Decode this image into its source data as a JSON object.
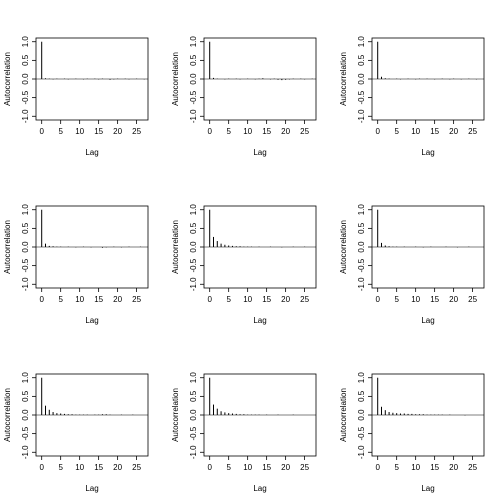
{
  "chart_data": [
    {
      "type": "acf",
      "xlabel": "Lag",
      "ylabel": "Autocorrelation",
      "x": [
        0,
        1,
        2,
        3,
        4,
        5,
        6,
        7,
        8,
        9,
        10,
        11,
        12,
        13,
        14,
        15,
        16,
        17,
        18,
        19,
        20,
        21,
        22,
        23,
        24,
        25,
        26,
        27
      ],
      "values": [
        1,
        0.02,
        0.01,
        -0.01,
        0.01,
        0,
        0.01,
        -0.01,
        0,
        0.01,
        0,
        -0.01,
        0.01,
        0,
        0.01,
        -0.01,
        0.01,
        0,
        -0.02,
        -0.01,
        0.01,
        0,
        0.01,
        -0.01,
        0,
        0.01,
        0,
        -0.01
      ],
      "xlim": [
        -1.5,
        28
      ],
      "ylim": [
        -1.1,
        1.1
      ],
      "xticks": [
        0,
        5,
        10,
        15,
        20,
        25
      ],
      "yticks": [
        {
          "value": -1,
          "label": "-1.0"
        },
        -0.5,
        {
          "value": 0,
          "label": "0.0"
        },
        0.5,
        {
          "value": 1,
          "label": "1.0"
        }
      ],
      "color": "#000000"
    },
    {
      "type": "acf",
      "xlabel": "Lag",
      "ylabel": "Autocorrelation",
      "x": [
        0,
        1,
        2,
        3,
        4,
        5,
        6,
        7,
        8,
        9,
        10,
        11,
        12,
        13,
        14,
        15,
        16,
        17,
        18,
        19,
        20,
        21,
        22,
        23,
        24,
        25,
        26,
        27
      ],
      "values": [
        1,
        0.03,
        0.01,
        0,
        -0.01,
        0.01,
        0,
        0.01,
        -0.01,
        0,
        0.01,
        0,
        -0.01,
        0.01,
        0.02,
        0,
        -0.01,
        0.01,
        -0.02,
        -0.03,
        -0.02,
        -0.01,
        0.01,
        0,
        0.01,
        -0.01,
        0,
        0.01
      ],
      "xlim": [
        -1.5,
        28
      ],
      "ylim": [
        -1.1,
        1.1
      ],
      "xticks": [
        0,
        5,
        10,
        15,
        20,
        25
      ],
      "yticks": [
        {
          "value": -1,
          "label": "-1.0"
        },
        -0.5,
        {
          "value": 0,
          "label": "0.0"
        },
        0.5,
        {
          "value": 1,
          "label": "1.0"
        }
      ],
      "color": "#000000"
    },
    {
      "type": "acf",
      "xlabel": "Lag",
      "ylabel": "Autocorrelation",
      "x": [
        0,
        1,
        2,
        3,
        4,
        5,
        6,
        7,
        8,
        9,
        10,
        11,
        12,
        13,
        14,
        15,
        16,
        17,
        18,
        19,
        20,
        21,
        22,
        23,
        24,
        25,
        26,
        27
      ],
      "values": [
        1,
        0.06,
        0.02,
        0.01,
        0,
        0.01,
        -0.01,
        0,
        0.01,
        0,
        -0.01,
        0.01,
        0,
        0.01,
        0,
        -0.01,
        0,
        0.01,
        0,
        -0.01,
        0.01,
        0,
        -0.01,
        0,
        0.01,
        0,
        -0.01,
        0
      ],
      "xlim": [
        -1.5,
        28
      ],
      "ylim": [
        -1.1,
        1.1
      ],
      "xticks": [
        0,
        5,
        10,
        15,
        20,
        25
      ],
      "yticks": [
        {
          "value": -1,
          "label": "-1.0"
        },
        -0.5,
        {
          "value": 0,
          "label": "0.0"
        },
        0.5,
        {
          "value": 1,
          "label": "1.0"
        }
      ],
      "color": "#000000"
    },
    {
      "type": "acf",
      "xlabel": "Lag",
      "ylabel": "Autocorrelation",
      "x": [
        0,
        1,
        2,
        3,
        4,
        5,
        6,
        7,
        8,
        9,
        10,
        11,
        12,
        13,
        14,
        15,
        16,
        17,
        18,
        19,
        20,
        21,
        22,
        23,
        24,
        25,
        26,
        27
      ],
      "values": [
        1,
        0.09,
        0.03,
        0.02,
        0.01,
        0.01,
        0,
        0.01,
        0,
        -0.01,
        0,
        0.01,
        0,
        -0.01,
        0,
        0,
        -0.02,
        -0.01,
        0,
        0.01,
        0,
        -0.01,
        0,
        0.01,
        0,
        0,
        0.01,
        0
      ],
      "xlim": [
        -1.5,
        28
      ],
      "ylim": [
        -1.1,
        1.1
      ],
      "xticks": [
        0,
        5,
        10,
        15,
        20,
        25
      ],
      "yticks": [
        {
          "value": -1,
          "label": "-1.0"
        },
        -0.5,
        {
          "value": 0,
          "label": "0.0"
        },
        0.5,
        {
          "value": 1,
          "label": "1.0"
        }
      ],
      "color": "#000000"
    },
    {
      "type": "acf",
      "xlabel": "Lag",
      "ylabel": "Autocorrelation",
      "x": [
        0,
        1,
        2,
        3,
        4,
        5,
        6,
        7,
        8,
        9,
        10,
        11,
        12,
        13,
        14,
        15,
        16,
        17,
        18,
        19,
        20,
        21,
        22,
        23,
        24,
        25,
        26,
        27
      ],
      "values": [
        1,
        0.27,
        0.16,
        0.09,
        0.06,
        0.04,
        0.03,
        0.02,
        0.02,
        0.01,
        0.01,
        0.01,
        0,
        0.01,
        0,
        0,
        0.01,
        0,
        0,
        -0.01,
        0,
        0,
        0.01,
        0,
        0,
        0.01,
        0,
        0
      ],
      "xlim": [
        -1.5,
        28
      ],
      "ylim": [
        -1.1,
        1.1
      ],
      "xticks": [
        0,
        5,
        10,
        15,
        20,
        25
      ],
      "yticks": [
        {
          "value": -1,
          "label": "-1.0"
        },
        -0.5,
        {
          "value": 0,
          "label": "0.0"
        },
        0.5,
        {
          "value": 1,
          "label": "1.0"
        }
      ],
      "color": "#000000"
    },
    {
      "type": "acf",
      "xlabel": "Lag",
      "ylabel": "Autocorrelation",
      "x": [
        0,
        1,
        2,
        3,
        4,
        5,
        6,
        7,
        8,
        9,
        10,
        11,
        12,
        13,
        14,
        15,
        16,
        17,
        18,
        19,
        20,
        21,
        22,
        23,
        24,
        25,
        26,
        27
      ],
      "values": [
        1,
        0.11,
        0.04,
        0.02,
        0.01,
        0.01,
        0,
        0.01,
        0,
        0,
        0.01,
        0,
        -0.01,
        0,
        0.01,
        0,
        0,
        0,
        0.01,
        0,
        0,
        -0.01,
        0,
        0,
        0.01,
        0,
        0,
        0
      ],
      "xlim": [
        -1.5,
        28
      ],
      "ylim": [
        -1.1,
        1.1
      ],
      "xticks": [
        0,
        5,
        10,
        15,
        20,
        25
      ],
      "yticks": [
        {
          "value": -1,
          "label": "-1.0"
        },
        -0.5,
        {
          "value": 0,
          "label": "0.0"
        },
        0.5,
        {
          "value": 1,
          "label": "1.0"
        }
      ],
      "color": "#000000"
    },
    {
      "type": "acf",
      "xlabel": "Lag",
      "ylabel": "Autocorrelation",
      "x": [
        0,
        1,
        2,
        3,
        4,
        5,
        6,
        7,
        8,
        9,
        10,
        11,
        12,
        13,
        14,
        15,
        16,
        17,
        18,
        19,
        20,
        21,
        22,
        23,
        24,
        25,
        26,
        27
      ],
      "values": [
        1,
        0.25,
        0.14,
        0.08,
        0.05,
        0.04,
        0.03,
        0.02,
        0.02,
        0.01,
        0.01,
        0.01,
        0.01,
        0,
        0.01,
        0.01,
        0.02,
        0.02,
        0.01,
        0,
        0,
        0.01,
        0,
        0,
        0.01,
        0,
        0,
        0
      ],
      "xlim": [
        -1.5,
        28
      ],
      "ylim": [
        -1.1,
        1.1
      ],
      "xticks": [
        0,
        5,
        10,
        15,
        20,
        25
      ],
      "yticks": [
        {
          "value": -1,
          "label": "-1.0"
        },
        -0.5,
        {
          "value": 0,
          "label": "0.0"
        },
        0.5,
        {
          "value": 1,
          "label": "1.0"
        }
      ],
      "color": "#000000"
    },
    {
      "type": "acf",
      "xlabel": "Lag",
      "ylabel": "Autocorrelation",
      "x": [
        0,
        1,
        2,
        3,
        4,
        5,
        6,
        7,
        8,
        9,
        10,
        11,
        12,
        13,
        14,
        15,
        16,
        17,
        18,
        19,
        20,
        21,
        22,
        23,
        24,
        25,
        26,
        27
      ],
      "values": [
        1,
        0.28,
        0.17,
        0.1,
        0.07,
        0.05,
        0.04,
        0.03,
        0.02,
        0.02,
        0.01,
        0.01,
        0.01,
        0.01,
        0,
        0.01,
        0,
        0,
        0.01,
        0,
        0,
        0,
        0.01,
        0,
        0,
        0,
        0,
        0
      ],
      "xlim": [
        -1.5,
        28
      ],
      "ylim": [
        -1.1,
        1.1
      ],
      "xticks": [
        0,
        5,
        10,
        15,
        20,
        25
      ],
      "yticks": [
        {
          "value": -1,
          "label": "-1.0"
        },
        -0.5,
        {
          "value": 0,
          "label": "0.0"
        },
        0.5,
        {
          "value": 1,
          "label": "1.0"
        }
      ],
      "color": "#000000"
    },
    {
      "type": "acf",
      "xlabel": "Lag",
      "ylabel": "Autocorrelation",
      "x": [
        0,
        1,
        2,
        3,
        4,
        5,
        6,
        7,
        8,
        9,
        10,
        11,
        12,
        13,
        14,
        15,
        16,
        17,
        18,
        19,
        20,
        21,
        22,
        23,
        24,
        25,
        26,
        27
      ],
      "values": [
        1,
        0.22,
        0.13,
        0.08,
        0.06,
        0.05,
        0.04,
        0.04,
        0.03,
        0.03,
        0.02,
        0.02,
        0.02,
        0.01,
        0.01,
        0.01,
        0.01,
        0.01,
        0,
        0.01,
        0,
        0,
        0,
        -0.01,
        0,
        0,
        0,
        0
      ],
      "xlim": [
        -1.5,
        28
      ],
      "ylim": [
        -1.1,
        1.1
      ],
      "xticks": [
        0,
        5,
        10,
        15,
        20,
        25
      ],
      "yticks": [
        {
          "value": -1,
          "label": "-1.0"
        },
        -0.5,
        {
          "value": 0,
          "label": "0.0"
        },
        0.5,
        {
          "value": 1,
          "label": "1.0"
        }
      ],
      "color": "#000000"
    }
  ]
}
